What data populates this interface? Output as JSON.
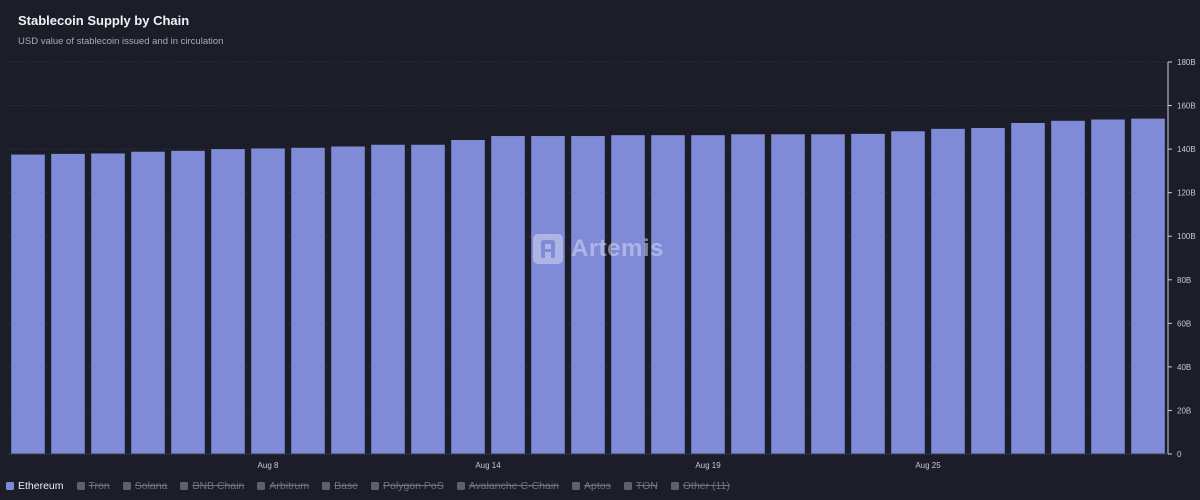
{
  "header": {
    "title": "Stablecoin Supply by Chain",
    "subtitle": "USD value of stablecoin issued and in circulation"
  },
  "watermark": {
    "text": "Artemis"
  },
  "colors": {
    "bar": "#7f8bd6",
    "grid": "#2f3240",
    "axis_text": "#c9cad3",
    "background": "#1b1d28"
  },
  "chart_data": {
    "type": "bar",
    "title": "Stablecoin Supply by Chain",
    "subtitle": "USD value of stablecoin issued and in circulation",
    "xlabel": "",
    "ylabel": "",
    "ylim": [
      0,
      180
    ],
    "y_unit": "B",
    "y_ticks": [
      0,
      20,
      40,
      60,
      80,
      100,
      120,
      140,
      160,
      180
    ],
    "y_tick_labels": [
      "0",
      "20B",
      "40B",
      "60B",
      "80B",
      "100B",
      "120B",
      "140B",
      "160B",
      "180B"
    ],
    "x_tick_labels": [
      {
        "label": "Aug 8",
        "index": 6
      },
      {
        "label": "Aug 14",
        "index": 11.5
      },
      {
        "label": "Aug 19",
        "index": 17
      },
      {
        "label": "Aug 25",
        "index": 22.5
      }
    ],
    "grid": true,
    "legend_position": "bottom-left",
    "series": [
      {
        "name": "Ethereum",
        "values": [
          137.5,
          137.8,
          138.0,
          138.8,
          139.2,
          140.0,
          140.3,
          140.6,
          141.2,
          142.0,
          142.0,
          144.2,
          146.0,
          146.0,
          146.0,
          146.4,
          146.4,
          146.4,
          146.8,
          146.8,
          146.8,
          147.0,
          148.2,
          149.3,
          149.7,
          152.0,
          153.0,
          153.6,
          154.0
        ]
      }
    ],
    "legend": [
      {
        "label": "Ethereum",
        "active": true
      },
      {
        "label": "Tron",
        "active": false
      },
      {
        "label": "Solana",
        "active": false
      },
      {
        "label": "BNB Chain",
        "active": false
      },
      {
        "label": "Arbitrum",
        "active": false
      },
      {
        "label": "Base",
        "active": false
      },
      {
        "label": "Polygon PoS",
        "active": false
      },
      {
        "label": "Avalanche C-Chain",
        "active": false
      },
      {
        "label": "Aptos",
        "active": false
      },
      {
        "label": "TON",
        "active": false
      },
      {
        "label": "Other (11)",
        "active": false
      }
    ]
  }
}
